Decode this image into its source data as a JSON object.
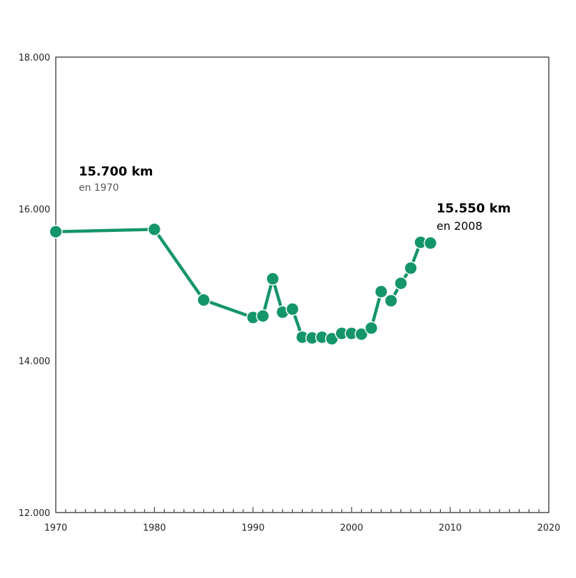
{
  "chart_data": {
    "type": "line",
    "title": "",
    "xlabel": "",
    "ylabel": "",
    "xlim": [
      1970,
      2020
    ],
    "ylim": [
      12000,
      18000
    ],
    "x_ticks": [
      1970,
      1980,
      1990,
      2000,
      2010,
      2020
    ],
    "x_tick_labels": [
      "1970",
      "1980",
      "1990",
      "2000",
      "2010",
      "2020"
    ],
    "y_ticks": [
      12000,
      14000,
      16000,
      18000
    ],
    "y_tick_labels": [
      "12.000",
      "14.000",
      "16.000",
      "18.000"
    ],
    "grid": false,
    "line_color": "#14956a",
    "series": [
      {
        "x": [
          1970,
          1980,
          1985,
          1990,
          1991,
          1992,
          1993,
          1994,
          1995,
          1996,
          1997,
          1998,
          1999,
          2000,
          2001,
          2002,
          2003,
          2004,
          2005,
          2006,
          2007,
          2008
        ],
        "values": [
          15700,
          15730,
          14800,
          14570,
          14590,
          15080,
          14640,
          14680,
          14310,
          14300,
          14310,
          14290,
          14360,
          14360,
          14350,
          14430,
          14910,
          14790,
          15020,
          15220,
          15560,
          15550
        ]
      }
    ],
    "annotations": [
      {
        "big": "15.700 km",
        "small": "en 1970"
      },
      {
        "big": "15.550 km",
        "small": "en 2008"
      }
    ]
  }
}
